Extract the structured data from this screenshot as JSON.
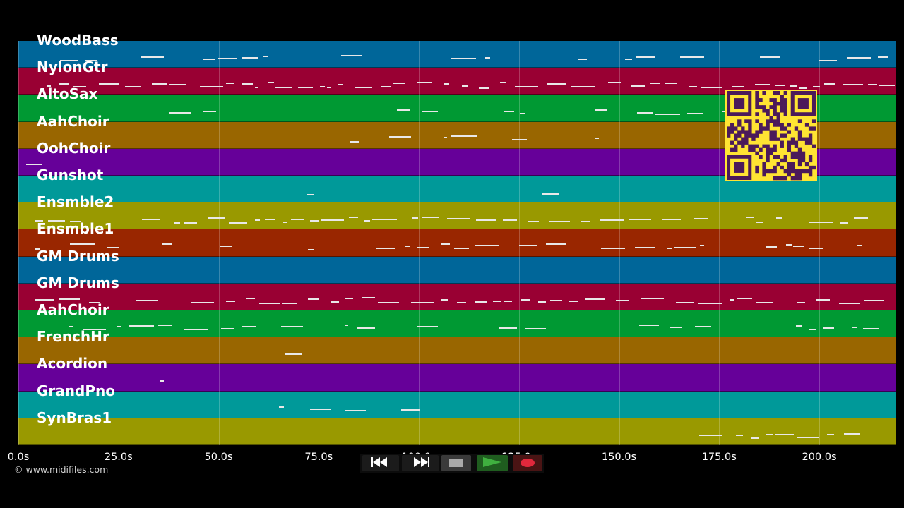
{
  "tracks": [
    {
      "name": "WoodBass",
      "color": "#006699"
    },
    {
      "name": "NylonGtr",
      "color": "#990033"
    },
    {
      "name": "AltoSax",
      "color": "#009933"
    },
    {
      "name": "AahChoir",
      "color": "#996600"
    },
    {
      "name": "OohChoir",
      "color": "#660099"
    },
    {
      "name": "Gunshot",
      "color": "#009999"
    },
    {
      "name": "Ensmble2",
      "color": "#999900"
    },
    {
      "name": "Ensmble1",
      "color": "#992600"
    },
    {
      "name": "GM Drums",
      "color": "#006699"
    },
    {
      "name": "GM Drums",
      "color": "#990033"
    },
    {
      "name": "AahChoir",
      "color": "#009933"
    },
    {
      "name": "FrenchHr",
      "color": "#996600"
    },
    {
      "name": "Acordion",
      "color": "#660099"
    },
    {
      "name": "GrandPno",
      "color": "#009999"
    },
    {
      "name": "SynBras1",
      "color": "#999900"
    }
  ],
  "timeline": {
    "ticks": [
      {
        "label": "0.0s",
        "t": 0
      },
      {
        "label": "25.0s",
        "t": 25
      },
      {
        "label": "50.0s",
        "t": 50
      },
      {
        "label": "75.0s",
        "t": 75
      },
      {
        "label": "100.0s",
        "t": 100
      },
      {
        "label": "125.0s",
        "t": 125
      },
      {
        "label": "150.0s",
        "t": 150
      },
      {
        "label": "175.0s",
        "t": 175
      },
      {
        "label": "200.0s",
        "t": 200
      }
    ],
    "duration_s": 219
  },
  "credit": "© www.midifiles.com",
  "transport": {
    "rewind_icon": "rewind-icon",
    "fast_forward_icon": "fast-forward-icon",
    "stop_icon": "stop-icon",
    "play_icon": "play-icon",
    "record_icon": "record-icon",
    "colors": {
      "play": "#2a8a2a",
      "record": "#e0283c",
      "stop": "#aaaaaa"
    }
  },
  "qr_code": {
    "color": "#ffe433",
    "fg": "#4b1a5a"
  }
}
